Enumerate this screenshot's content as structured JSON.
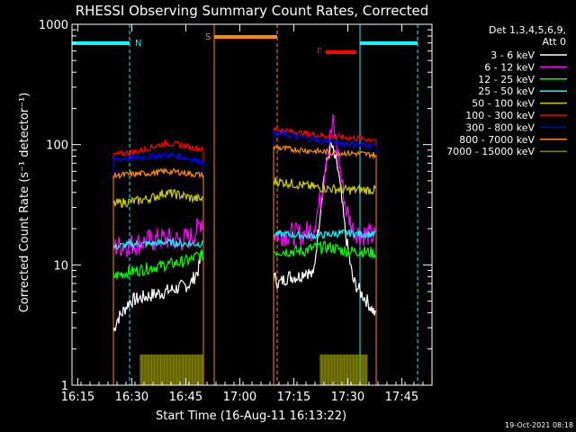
{
  "chart_data": {
    "type": "line",
    "title": "RHESSI Observing Summary Count Rates, Corrected",
    "xlabel": "Start Time (16-Aug-11 16:13:22)",
    "ylabel": "Corrected Count Rate (s⁻¹ detector⁻¹)",
    "timestamp": "19-Oct-2021 08:18",
    "x_unit": "minutes after 16:13:22",
    "xlim": [
      0,
      100
    ],
    "ylim": [
      1,
      1000
    ],
    "yscale": "log",
    "x_ticks": [
      {
        "t": 1.6,
        "label": "16:15"
      },
      {
        "t": 16.6,
        "label": "16:30"
      },
      {
        "t": 31.6,
        "label": "16:45"
      },
      {
        "t": 46.6,
        "label": "17:00"
      },
      {
        "t": 61.6,
        "label": "17:15"
      },
      {
        "t": 76.6,
        "label": "17:30"
      },
      {
        "t": 91.6,
        "label": "17:45"
      }
    ],
    "y_ticks": [
      {
        "v": 1,
        "label": "1"
      },
      {
        "v": 10,
        "label": "10"
      },
      {
        "v": 100,
        "label": "100"
      },
      {
        "v": 1000,
        "label": "1000"
      }
    ],
    "legend_header": [
      "Det 1,3,4,5,6,9,",
      "Att 0"
    ],
    "legend_position": "top-right",
    "series": [
      {
        "name": "3 - 6 keV",
        "color": "#ffffff",
        "x": [
          11.5,
          12.5,
          14,
          16,
          18,
          22,
          26,
          30,
          33,
          35,
          36,
          36.5,
          56,
          57.5,
          60,
          63,
          65,
          67,
          68,
          70,
          72,
          74,
          76,
          78,
          80,
          82,
          84,
          84.5
        ],
        "y": [
          2.8,
          3.5,
          4,
          5,
          5.2,
          5.6,
          6,
          6.5,
          7,
          9,
          12,
          14,
          8,
          7,
          8,
          8,
          9,
          8,
          15,
          55,
          100,
          60,
          18,
          7.5,
          6,
          5,
          4,
          3.5
        ]
      },
      {
        "name": "6 - 12 keV",
        "color": "#ff00ff",
        "x": [
          11.5,
          14,
          18,
          22,
          26,
          30,
          33,
          35,
          36,
          36.5,
          56,
          60,
          64,
          67,
          69,
          71,
          72.5,
          74,
          76,
          78,
          80,
          82,
          84.5
        ],
        "y": [
          14,
          14.5,
          15,
          16,
          16.5,
          16,
          17,
          20,
          24,
          22,
          18,
          18,
          18,
          20,
          35,
          90,
          150,
          80,
          30,
          20,
          18,
          18,
          17
        ]
      },
      {
        "name": "12 - 25 keV",
        "color": "#00ff00",
        "x": [
          11.5,
          14,
          18,
          22,
          26,
          30,
          33,
          35,
          36.5,
          56,
          60,
          64,
          68,
          72,
          76,
          80,
          84.5
        ],
        "y": [
          8,
          8.5,
          9,
          9.5,
          10,
          10.5,
          11,
          12,
          12,
          13,
          13,
          13,
          14,
          14,
          13,
          13,
          12.5
        ]
      },
      {
        "name": "25 - 50 keV",
        "color": "#00ffff",
        "x": [
          11.5,
          14,
          18,
          22,
          26,
          30,
          33,
          36.5,
          56,
          60,
          64,
          68,
          72,
          76,
          80,
          84.5
        ],
        "y": [
          14,
          14.5,
          15,
          15,
          15.5,
          15,
          15,
          15,
          18,
          18,
          17.5,
          17.5,
          18,
          18.5,
          18,
          18
        ]
      },
      {
        "name": "50 - 100 keV",
        "color": "#cccc00",
        "x": [
          11.5,
          14,
          18,
          22,
          26,
          30,
          33,
          36.5,
          56,
          60,
          64,
          68,
          72,
          76,
          80,
          84.5
        ],
        "y": [
          32,
          33,
          34,
          36,
          40,
          38,
          36,
          35,
          50,
          48,
          46,
          44,
          43,
          42,
          42,
          42
        ]
      },
      {
        "name": "100 - 300 keV",
        "color": "#ff0000",
        "x": [
          11.5,
          14,
          18,
          22,
          26,
          30,
          33,
          36.5,
          56,
          60,
          64,
          68,
          72,
          76,
          80,
          84.5
        ],
        "y": [
          82,
          84,
          88,
          95,
          103,
          100,
          95,
          92,
          135,
          130,
          125,
          120,
          118,
          115,
          112,
          110
        ]
      },
      {
        "name": "300 - 800 keV",
        "color": "#0000ff",
        "x": [
          11.5,
          14,
          18,
          22,
          26,
          30,
          33,
          36.5,
          56,
          60,
          64,
          68,
          72,
          76,
          80,
          84.5
        ],
        "y": [
          75,
          76,
          78,
          80,
          82,
          80,
          76,
          72,
          125,
          120,
          115,
          110,
          105,
          102,
          100,
          98
        ]
      },
      {
        "name": "800 - 7000 keV",
        "color": "#ff8c00",
        "x": [
          11.5,
          14,
          18,
          22,
          26,
          30,
          33,
          36.5,
          56,
          60,
          64,
          68,
          72,
          76,
          80,
          84.5
        ],
        "y": [
          55,
          56,
          57,
          58,
          60,
          59,
          57,
          56,
          95,
          92,
          90,
          88,
          86,
          85,
          84,
          82
        ]
      },
      {
        "name": "7000 - 15000 keV",
        "color": "#808000",
        "x": [
          19,
          36.5,
          69,
          82
        ],
        "y": [
          1.5,
          1.5,
          1.5,
          1.5
        ]
      }
    ],
    "annotations": [
      {
        "label": "N",
        "color": "#00ffff"
      },
      {
        "label": "S",
        "color": "#ff8c00"
      },
      {
        "label": "F",
        "color": "#ff0000"
      }
    ]
  }
}
